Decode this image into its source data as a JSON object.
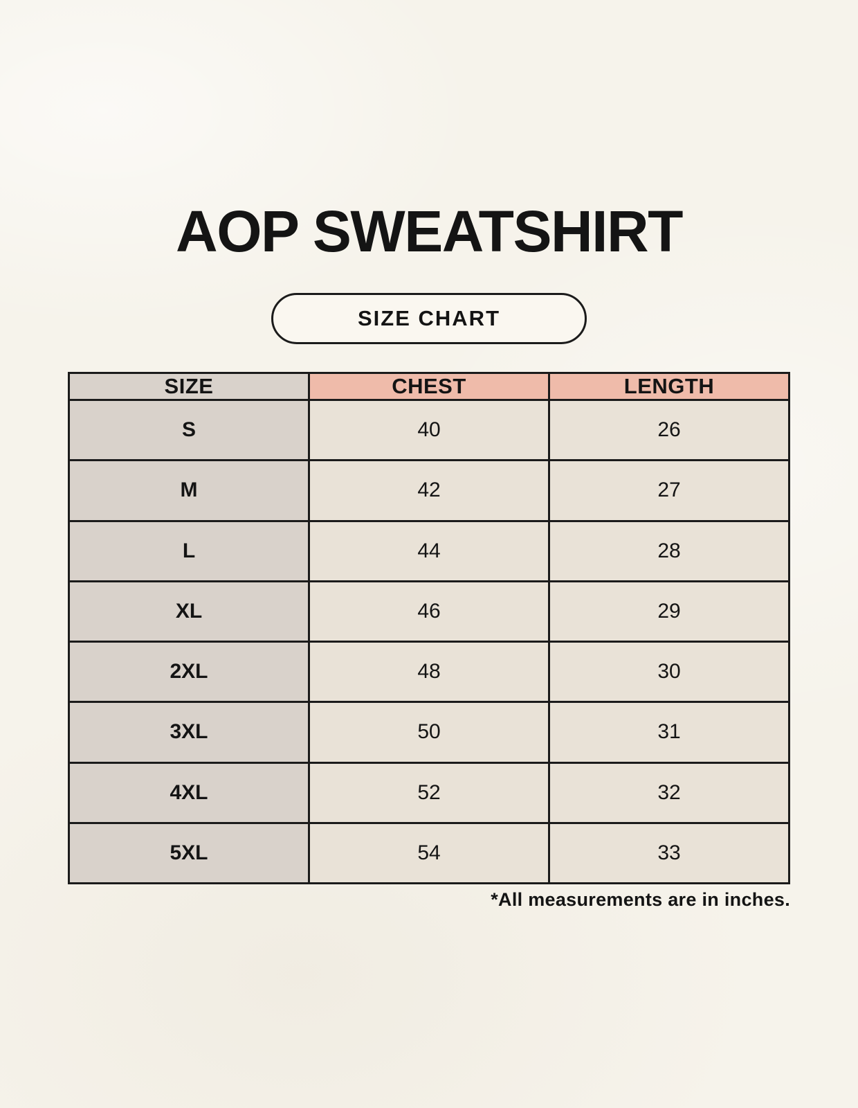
{
  "header": {
    "title": "AOP SWEATSHIRT",
    "badge_label": "SIZE CHART"
  },
  "chart_data": {
    "type": "table",
    "title": "AOP SWEATSHIRT",
    "subtitle": "SIZE CHART",
    "columns": [
      "SIZE",
      "CHEST",
      "LENGTH"
    ],
    "rows": [
      [
        "S",
        "40",
        "26"
      ],
      [
        "M",
        "42",
        "27"
      ],
      [
        "L",
        "44",
        "28"
      ],
      [
        "XL",
        "46",
        "29"
      ],
      [
        "2XL",
        "48",
        "30"
      ],
      [
        "3XL",
        "50",
        "31"
      ],
      [
        "4XL",
        "52",
        "32"
      ],
      [
        "5XL",
        "54",
        "33"
      ]
    ],
    "units": "inches"
  },
  "footnote": "*All measurements are in inches.",
  "colors": {
    "bg": "#f6f3eb",
    "taupe": "#d9d2cb",
    "salmon": "#efbbaa",
    "cream": "#e9e2d7",
    "border": "#1b1b1b",
    "ink": "#141414",
    "badge-bg": "#faf7f0"
  }
}
